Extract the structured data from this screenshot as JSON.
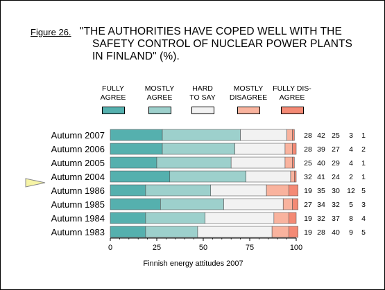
{
  "figure_label": "Figure 26.",
  "title_lines": [
    "\"THE AUTHORITIES HAVE COPED WELL WITH THE",
    "SAFETY CONTROL OF NUCLEAR POWER PLANTS",
    "IN FINLAND\" (%)."
  ],
  "footer": "Finnish energy attitudes 2007",
  "chart_data": {
    "type": "bar",
    "orientation": "horizontal",
    "stacked": true,
    "categories": [
      "Autumn 2007",
      "Autumn 2006",
      "Autumn 2005",
      "Autumn 2004",
      "Autumn 1986",
      "Autumn 1985",
      "Autumn 1984",
      "Autumn 1983"
    ],
    "highlighted_category": "Autumn 1986",
    "series": [
      {
        "name": "FULLY\nAGREE",
        "color": "#55b0ae",
        "values": [
          28,
          28,
          25,
          32,
          19,
          27,
          19,
          19
        ]
      },
      {
        "name": "MOSTLY\nAGREE",
        "color": "#9dd0cc",
        "values": [
          42,
          39,
          40,
          41,
          35,
          34,
          32,
          28
        ]
      },
      {
        "name": "HARD\nTO SAY",
        "color": "#f2f2f2",
        "values": [
          25,
          27,
          29,
          24,
          30,
          32,
          37,
          40
        ]
      },
      {
        "name": "MOSTLY\nDISAGREE",
        "color": "#f9b39e",
        "values": [
          3,
          4,
          4,
          2,
          12,
          5,
          8,
          9
        ]
      },
      {
        "name": "FULLY DIS-\nAGREE",
        "color": "#f48a75",
        "values": [
          1,
          2,
          1,
          1,
          5,
          3,
          4,
          5
        ]
      }
    ],
    "xlim": [
      0,
      100
    ],
    "xticks": [
      0,
      25,
      50,
      75,
      100
    ],
    "grid": false,
    "legend_placement": "top"
  }
}
